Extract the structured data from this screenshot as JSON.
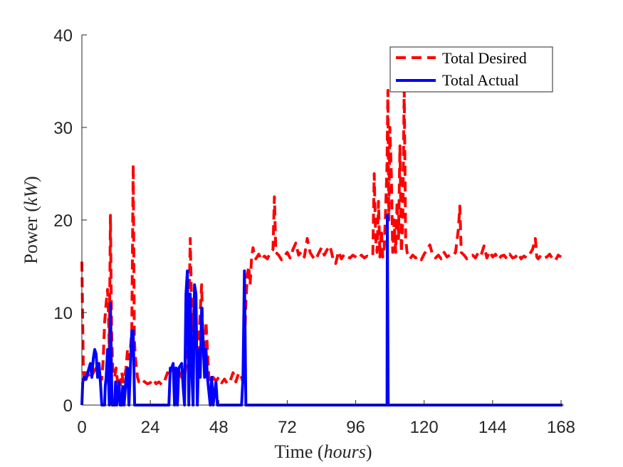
{
  "chart_data": {
    "type": "line",
    "title": "",
    "xlabel": {
      "prefix": "Time (",
      "italic": "hours",
      "suffix": ")"
    },
    "ylabel": {
      "prefix": "Power (",
      "italic": "kW",
      "suffix": ")"
    },
    "xlim": [
      0,
      169
    ],
    "ylim": [
      0,
      40
    ],
    "xticks": [
      0,
      24,
      48,
      72,
      96,
      120,
      144,
      168
    ],
    "yticks": [
      0,
      10,
      20,
      30,
      40
    ],
    "grid": false,
    "legend_position": "top-right",
    "series": [
      {
        "name": "Total Desired",
        "color": "#ff0000",
        "style": "dashed",
        "points": [
          [
            0,
            15.5
          ],
          [
            0.5,
            4
          ],
          [
            1,
            2.5
          ],
          [
            1.5,
            3.5
          ],
          [
            2,
            3.5
          ],
          [
            3,
            2.8
          ],
          [
            4,
            3.5
          ],
          [
            5,
            4
          ],
          [
            6,
            3.2
          ],
          [
            7,
            2.8
          ],
          [
            7.5,
            5
          ],
          [
            8,
            9
          ],
          [
            8.5,
            11
          ],
          [
            9,
            12.5
          ],
          [
            9.3,
            10
          ],
          [
            9.6,
            6
          ],
          [
            10,
            20.5
          ],
          [
            10.4,
            8
          ],
          [
            10.8,
            4
          ],
          [
            11.5,
            3
          ],
          [
            12,
            4
          ],
          [
            12.5,
            2.5
          ],
          [
            13,
            3
          ],
          [
            13.5,
            2.2
          ],
          [
            14,
            3.5
          ],
          [
            14.5,
            2.5
          ],
          [
            15,
            3
          ],
          [
            15.5,
            4
          ],
          [
            16,
            6
          ],
          [
            16.5,
            5
          ],
          [
            17,
            6
          ],
          [
            17.5,
            8
          ],
          [
            18,
            26
          ],
          [
            18.4,
            7
          ],
          [
            18.8,
            5
          ],
          [
            19.5,
            3
          ],
          [
            20,
            2.5
          ],
          [
            21,
            2.8
          ],
          [
            22,
            2.5
          ],
          [
            23,
            2.3
          ],
          [
            24,
            2.4
          ],
          [
            25,
            2.8
          ],
          [
            26,
            2.3
          ],
          [
            27,
            2.5
          ],
          [
            28,
            2.2
          ],
          [
            29,
            2.6
          ],
          [
            30,
            3.5
          ],
          [
            31,
            3.2
          ],
          [
            32,
            4
          ],
          [
            33,
            3.5
          ],
          [
            34,
            3.8
          ],
          [
            35,
            3
          ],
          [
            35.5,
            4
          ],
          [
            36,
            2.8
          ],
          [
            36.5,
            4.5
          ],
          [
            37,
            12
          ],
          [
            37.5,
            9
          ],
          [
            38,
            18
          ],
          [
            38.5,
            10
          ],
          [
            39,
            8
          ],
          [
            39.5,
            12
          ],
          [
            40,
            9
          ],
          [
            40.5,
            4
          ],
          [
            41,
            7
          ],
          [
            41.5,
            10
          ],
          [
            42,
            13
          ],
          [
            42.5,
            6
          ],
          [
            43,
            4
          ],
          [
            43.5,
            9
          ],
          [
            44,
            6
          ],
          [
            44.5,
            3
          ],
          [
            45,
            2.5
          ],
          [
            46,
            3
          ],
          [
            47,
            2.6
          ],
          [
            48,
            3
          ],
          [
            49,
            2.4
          ],
          [
            50,
            2.8
          ],
          [
            51,
            2.3
          ],
          [
            52,
            2.6
          ],
          [
            53,
            3.5
          ],
          [
            54,
            2.5
          ],
          [
            55,
            3.5
          ],
          [
            56,
            3
          ],
          [
            56.5,
            2.5
          ],
          [
            57,
            6
          ],
          [
            57.5,
            11
          ],
          [
            58,
            14
          ],
          [
            58.5,
            15
          ],
          [
            59,
            13
          ],
          [
            59.5,
            16
          ],
          [
            60,
            17
          ],
          [
            60.5,
            16.2
          ],
          [
            61,
            15.8
          ],
          [
            62,
            16.3
          ],
          [
            63,
            15.7
          ],
          [
            64,
            16.1
          ],
          [
            65,
            15.8
          ],
          [
            66,
            16.4
          ],
          [
            67,
            16.8
          ],
          [
            67.5,
            22.5
          ],
          [
            68,
            16.5
          ],
          [
            69,
            16.2
          ],
          [
            70,
            15.7
          ],
          [
            71,
            16.1
          ],
          [
            72,
            16.5
          ],
          [
            73,
            15.9
          ],
          [
            74,
            16.8
          ],
          [
            75,
            17.5
          ],
          [
            76,
            16.2
          ],
          [
            77,
            16.6
          ],
          [
            78,
            16
          ],
          [
            79,
            18
          ],
          [
            80,
            16.5
          ],
          [
            81,
            16
          ],
          [
            82,
            15.7
          ],
          [
            83,
            16.4
          ],
          [
            84,
            17
          ],
          [
            85,
            16.2
          ],
          [
            86,
            16.8
          ],
          [
            87,
            17.2
          ],
          [
            88,
            15.9
          ],
          [
            89,
            15.3
          ],
          [
            90,
            16.6
          ],
          [
            91,
            15.8
          ],
          [
            92,
            16.3
          ],
          [
            93,
            16
          ],
          [
            94,
            15.9
          ],
          [
            95,
            16.2
          ],
          [
            96,
            16
          ],
          [
            97,
            15.8
          ],
          [
            98,
            16.2
          ],
          [
            99,
            15.9
          ],
          [
            100,
            16.1
          ],
          [
            101,
            16
          ],
          [
            102,
            16.2
          ],
          [
            102.5,
            25
          ],
          [
            103,
            18
          ],
          [
            103.5,
            16.5
          ],
          [
            104,
            22
          ],
          [
            104.5,
            16
          ],
          [
            105,
            19
          ],
          [
            105.5,
            16
          ],
          [
            106,
            17
          ],
          [
            106.5,
            21
          ],
          [
            107,
            26
          ],
          [
            107.3,
            34
          ],
          [
            107.6,
            20
          ],
          [
            108,
            30
          ],
          [
            108.5,
            25
          ],
          [
            109,
            16.5
          ],
          [
            109.5,
            20
          ],
          [
            110,
            16.5
          ],
          [
            110.5,
            22
          ],
          [
            111,
            18
          ],
          [
            111.5,
            28
          ],
          [
            112,
            16.5
          ],
          [
            112.5,
            20
          ],
          [
            113,
            34
          ],
          [
            113.5,
            18
          ],
          [
            114,
            16.5
          ],
          [
            115,
            15.8
          ],
          [
            116,
            16.2
          ],
          [
            117,
            15.9
          ],
          [
            118,
            16.1
          ],
          [
            119,
            15.7
          ],
          [
            120,
            16.3
          ],
          [
            121,
            16.8
          ],
          [
            122,
            17.3
          ],
          [
            123,
            16.2
          ],
          [
            124,
            15.9
          ],
          [
            125,
            16.2
          ],
          [
            126,
            15.8
          ],
          [
            127,
            16.5
          ],
          [
            128,
            16
          ],
          [
            129,
            16.2
          ],
          [
            130,
            16.1
          ],
          [
            131,
            16.5
          ],
          [
            132,
            19
          ],
          [
            132.5,
            21.5
          ],
          [
            133,
            16.5
          ],
          [
            134,
            16.2
          ],
          [
            135,
            15.8
          ],
          [
            136,
            16.1
          ],
          [
            137,
            16.2
          ],
          [
            138,
            15.9
          ],
          [
            139,
            16.5
          ],
          [
            140,
            16.2
          ],
          [
            141,
            17.2
          ],
          [
            142,
            15.9
          ],
          [
            143,
            16.6
          ],
          [
            144,
            16
          ],
          [
            145,
            16.3
          ],
          [
            146,
            15.7
          ],
          [
            147,
            16.1
          ],
          [
            148,
            16.2
          ],
          [
            149,
            15.8
          ],
          [
            150,
            16.3
          ],
          [
            151,
            15.9
          ],
          [
            152,
            16
          ],
          [
            153,
            16.4
          ],
          [
            154,
            15.8
          ],
          [
            155,
            16.1
          ],
          [
            156,
            15.9
          ],
          [
            157,
            16.3
          ],
          [
            158,
            16.8
          ],
          [
            159,
            18
          ],
          [
            159.5,
            16
          ],
          [
            160,
            15.8
          ],
          [
            161,
            16.2
          ],
          [
            162,
            15.9
          ],
          [
            163,
            16
          ],
          [
            164,
            16.3
          ],
          [
            165,
            15.8
          ],
          [
            166,
            15.6
          ],
          [
            167,
            16.2
          ],
          [
            168,
            16
          ]
        ]
      },
      {
        "name": "Total Actual",
        "color": "#0000ff",
        "style": "solid",
        "points": [
          [
            0,
            0
          ],
          [
            0.3,
            2.5
          ],
          [
            0.8,
            3
          ],
          [
            1.5,
            2.8
          ],
          [
            2.5,
            4
          ],
          [
            3,
            4.5
          ],
          [
            3.5,
            3
          ],
          [
            4,
            5
          ],
          [
            4.5,
            6
          ],
          [
            5,
            5.5
          ],
          [
            5.5,
            3
          ],
          [
            6,
            4.5
          ],
          [
            6.5,
            2.5
          ],
          [
            7,
            0
          ],
          [
            8,
            0
          ],
          [
            8.2,
            2
          ],
          [
            8.5,
            3
          ],
          [
            9,
            6
          ],
          [
            9.3,
            3
          ],
          [
            9.6,
            0
          ],
          [
            10,
            11
          ],
          [
            10.4,
            3
          ],
          [
            10.6,
            0
          ],
          [
            11.5,
            0
          ],
          [
            11.8,
            2.5
          ],
          [
            12.2,
            0
          ],
          [
            13,
            2.5
          ],
          [
            13.4,
            0
          ],
          [
            14,
            0
          ],
          [
            14.3,
            2
          ],
          [
            14.8,
            0
          ],
          [
            15.5,
            3
          ],
          [
            16,
            4
          ],
          [
            16.5,
            0
          ],
          [
            17,
            4
          ],
          [
            17.5,
            8
          ],
          [
            18,
            8
          ],
          [
            18.5,
            0
          ],
          [
            20,
            0
          ],
          [
            23,
            0
          ],
          [
            26,
            0
          ],
          [
            29,
            0
          ],
          [
            30.5,
            0
          ],
          [
            31,
            4
          ],
          [
            31.5,
            4
          ],
          [
            32,
            4.5
          ],
          [
            32.5,
            0
          ],
          [
            33,
            4
          ],
          [
            33.5,
            0
          ],
          [
            34,
            4
          ],
          [
            35,
            4.5
          ],
          [
            35.5,
            2
          ],
          [
            36,
            0
          ],
          [
            36.5,
            12
          ],
          [
            37,
            14.5
          ],
          [
            37.5,
            0
          ],
          [
            38,
            12
          ],
          [
            38.5,
            4
          ],
          [
            39,
            0
          ],
          [
            39.5,
            13
          ],
          [
            40,
            12
          ],
          [
            40.5,
            0
          ],
          [
            41,
            6
          ],
          [
            41.5,
            3
          ],
          [
            42,
            10.5
          ],
          [
            42.5,
            7
          ],
          [
            43,
            3
          ],
          [
            43.5,
            6
          ],
          [
            44,
            3
          ],
          [
            45,
            0
          ],
          [
            45.5,
            3
          ],
          [
            46,
            0
          ],
          [
            47,
            2.5
          ],
          [
            47.5,
            0
          ],
          [
            52,
            0
          ],
          [
            53,
            0
          ],
          [
            53.5,
            0
          ],
          [
            54,
            0
          ],
          [
            55,
            0
          ],
          [
            56,
            0
          ],
          [
            56.5,
            3
          ],
          [
            57,
            14.5
          ],
          [
            57.5,
            0
          ],
          [
            58,
            0
          ],
          [
            60,
            0
          ],
          [
            70,
            0
          ],
          [
            80,
            0
          ],
          [
            90,
            0
          ],
          [
            100,
            0
          ],
          [
            107,
            0
          ],
          [
            107.1,
            20.5
          ],
          [
            107.4,
            0
          ],
          [
            110,
            0
          ],
          [
            120,
            0
          ],
          [
            130,
            0
          ],
          [
            140,
            0
          ],
          [
            150,
            0
          ],
          [
            160,
            0
          ],
          [
            168.5,
            0
          ]
        ]
      }
    ]
  }
}
